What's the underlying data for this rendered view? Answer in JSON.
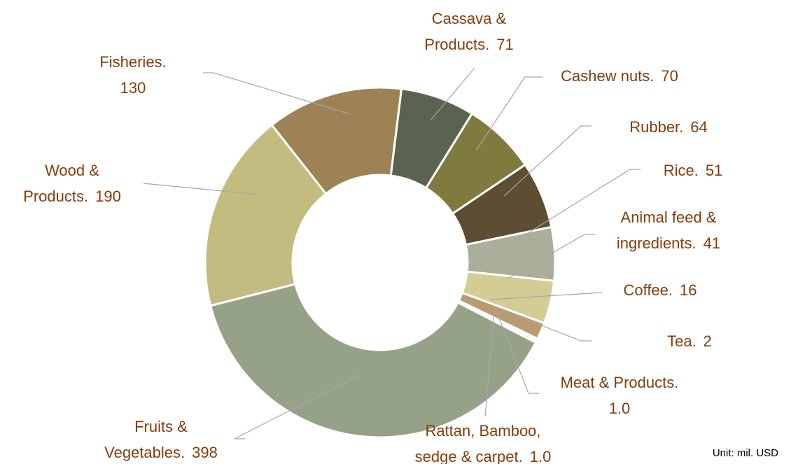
{
  "chart_data": {
    "type": "donut",
    "categories": [
      "Cassava & Products.",
      "Cashew nuts.",
      "Rubber.",
      "Rice.",
      "Animal feed & ingredients.",
      "Coffee.",
      "Tea.",
      "Meat & Products.",
      "Rattan, Bamboo, sedge & carpet.",
      "Fruits & Vegetables.",
      "Wood & Products.",
      "Fisheries."
    ],
    "values": [
      71,
      70,
      64,
      51,
      41,
      16,
      2,
      1,
      1,
      398,
      190,
      130
    ],
    "value_labels": [
      "71",
      "70",
      "64",
      "51",
      "41",
      "16",
      "2",
      "1.0",
      "1.0",
      "398",
      "190",
      "130"
    ],
    "colors": [
      "#5a6350",
      "#7f7b3e",
      "#5c4d33",
      "#a9af9a",
      "#d3cc95",
      "#b89c70",
      "#c8b37e",
      "#9b8357",
      "#6e7560",
      "#95a288",
      "#c3bc80",
      "#9c8254"
    ],
    "unit": "Unit: mil. USD"
  }
}
